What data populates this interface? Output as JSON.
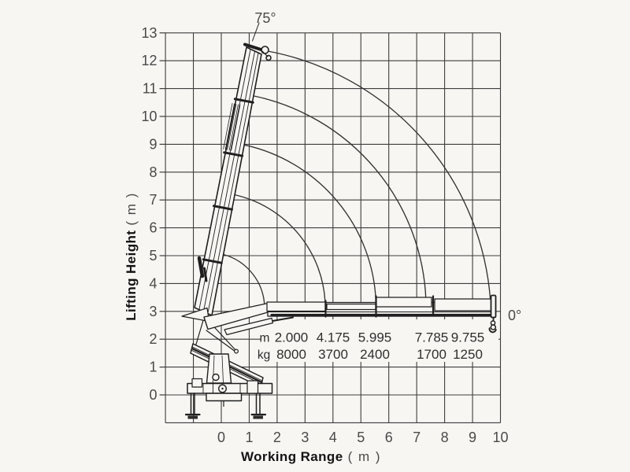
{
  "page": {
    "background": "#f7f6f3"
  },
  "chart_data": {
    "type": "line",
    "title": "",
    "xlabel": "Working Range",
    "xlabel_unit": "( m )",
    "ylabel": "Lifting Height",
    "ylabel_unit": "( m )",
    "xlim": [
      -2,
      10
    ],
    "ylim": [
      -1,
      13
    ],
    "x_ticks": [
      "0",
      "1",
      "2",
      "3",
      "4",
      "5",
      "6",
      "7",
      "8",
      "9",
      "10"
    ],
    "y_ticks": [
      "0",
      "1",
      "2",
      "3",
      "4",
      "5",
      "6",
      "7",
      "8",
      "9",
      "10",
      "11",
      "12",
      "13"
    ],
    "grid": true,
    "legend_position": "none",
    "angle_max_label": "75°",
    "angle_min_label": "0°",
    "boom_pivot_m": {
      "x": -0.45,
      "y": 3.11
    },
    "arc_sweep_deg": {
      "from": 2,
      "to": 73
    },
    "row_labels": {
      "reach": "m",
      "capacity": "kg"
    },
    "load_points": [
      {
        "reach_m": "2.000",
        "capacity_kg": "8000"
      },
      {
        "reach_m": "4.175",
        "capacity_kg": "3700"
      },
      {
        "reach_m": "5.995",
        "capacity_kg": "2400"
      },
      {
        "reach_m": "7.785",
        "capacity_kg": "1700"
      },
      {
        "reach_m": "9.755",
        "capacity_kg": "1250"
      }
    ],
    "colors": {
      "grid_line": "#3d3d3d",
      "tick_text": "#4a4a4a",
      "axis_title_text": "#141414",
      "value_text": "#2e2e2e",
      "crane_line": "#1f1f1f",
      "background": "#f7f6f3"
    }
  }
}
